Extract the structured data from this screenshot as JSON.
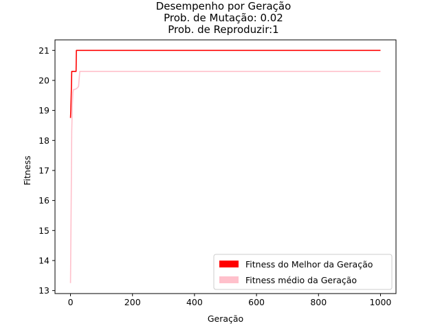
{
  "chart_data": {
    "type": "line",
    "title": [
      "Desempenho por Geração",
      "Prob. de Mutação: 0.02",
      "Prob. de Reproduzir:1"
    ],
    "xlabel": "Geração",
    "ylabel": "Fitness",
    "xlim": [
      -50,
      1050
    ],
    "ylim": [
      12.9,
      21.35
    ],
    "xticks": [
      0,
      200,
      400,
      600,
      800,
      1000
    ],
    "yticks": [
      13,
      14,
      15,
      16,
      17,
      18,
      19,
      20,
      21
    ],
    "grid": false,
    "legend_position": "lower-right",
    "series": [
      {
        "name": "Fitness do Melhor da Geração",
        "color": "#ff0000",
        "x": [
          0,
          1,
          3,
          4,
          18,
          19,
          25,
          1000
        ],
        "y": [
          18.75,
          19.0,
          19.8,
          20.3,
          20.3,
          21.0,
          21.0,
          21.0
        ]
      },
      {
        "name": "Fitness médio da Geração",
        "color": "#ffc0cb",
        "x": [
          0,
          1,
          2,
          3,
          4,
          6,
          8,
          10,
          12,
          14,
          18,
          22,
          26,
          30,
          35,
          1000
        ],
        "y": [
          13.25,
          14.5,
          15.7,
          17.0,
          18.3,
          19.2,
          19.6,
          19.7,
          19.7,
          19.7,
          19.72,
          19.75,
          19.8,
          20.3,
          20.3,
          20.3
        ]
      }
    ]
  }
}
